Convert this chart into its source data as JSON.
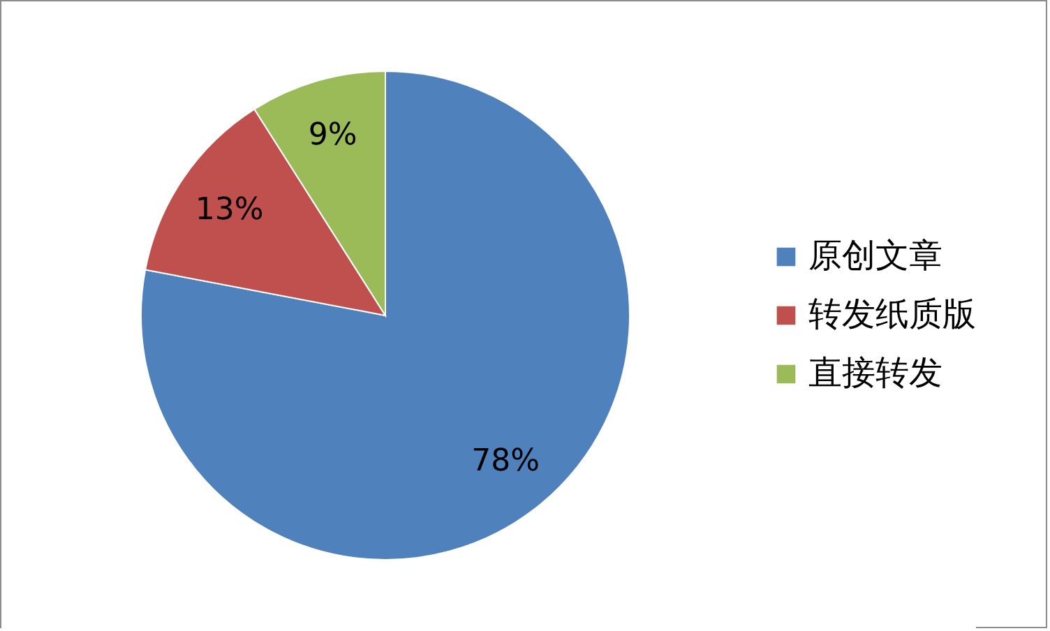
{
  "chart_data": {
    "type": "pie",
    "categories": [
      "原创文章",
      "转发纸质版",
      "直接转发"
    ],
    "values": [
      78,
      13,
      9
    ],
    "colors": [
      "#4f81bd",
      "#c0504d",
      "#9bbb59"
    ],
    "value_labels": [
      "78%",
      "13%",
      "9%"
    ],
    "legend": "right"
  }
}
